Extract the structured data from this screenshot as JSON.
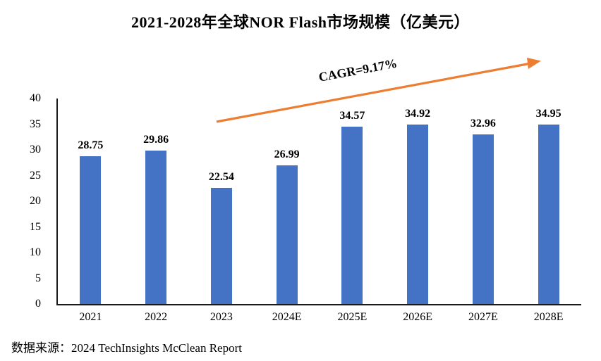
{
  "title": "2021-2028年全球NOR Flash市场规模（亿美元）",
  "source_label": "数据来源：2024 TechInsights McClean Report",
  "colors": {
    "bar_blue": "#4472C4",
    "arrow_orange": "#ED7D31",
    "axis_black": "#1a1a1a"
  },
  "chart_data": {
    "type": "bar",
    "title": "2021-2028年全球NOR Flash市场规模（亿美元）",
    "categories": [
      "2021",
      "2022",
      "2023",
      "2024E",
      "2025E",
      "2026E",
      "2027E",
      "2028E"
    ],
    "values": [
      28.75,
      29.86,
      22.54,
      26.99,
      34.57,
      34.92,
      32.96,
      34.95
    ],
    "value_label_decimals": 2,
    "xlabel": "",
    "ylabel": "",
    "ylim": [
      0,
      40
    ],
    "yticks": [
      0,
      5,
      10,
      15,
      20,
      25,
      30,
      35,
      40
    ],
    "grid": false,
    "legend": false,
    "bar_color": "#4472C4",
    "annotation": {
      "text": "CAGR=9.17%",
      "arrow_color": "#ED7D31"
    }
  }
}
